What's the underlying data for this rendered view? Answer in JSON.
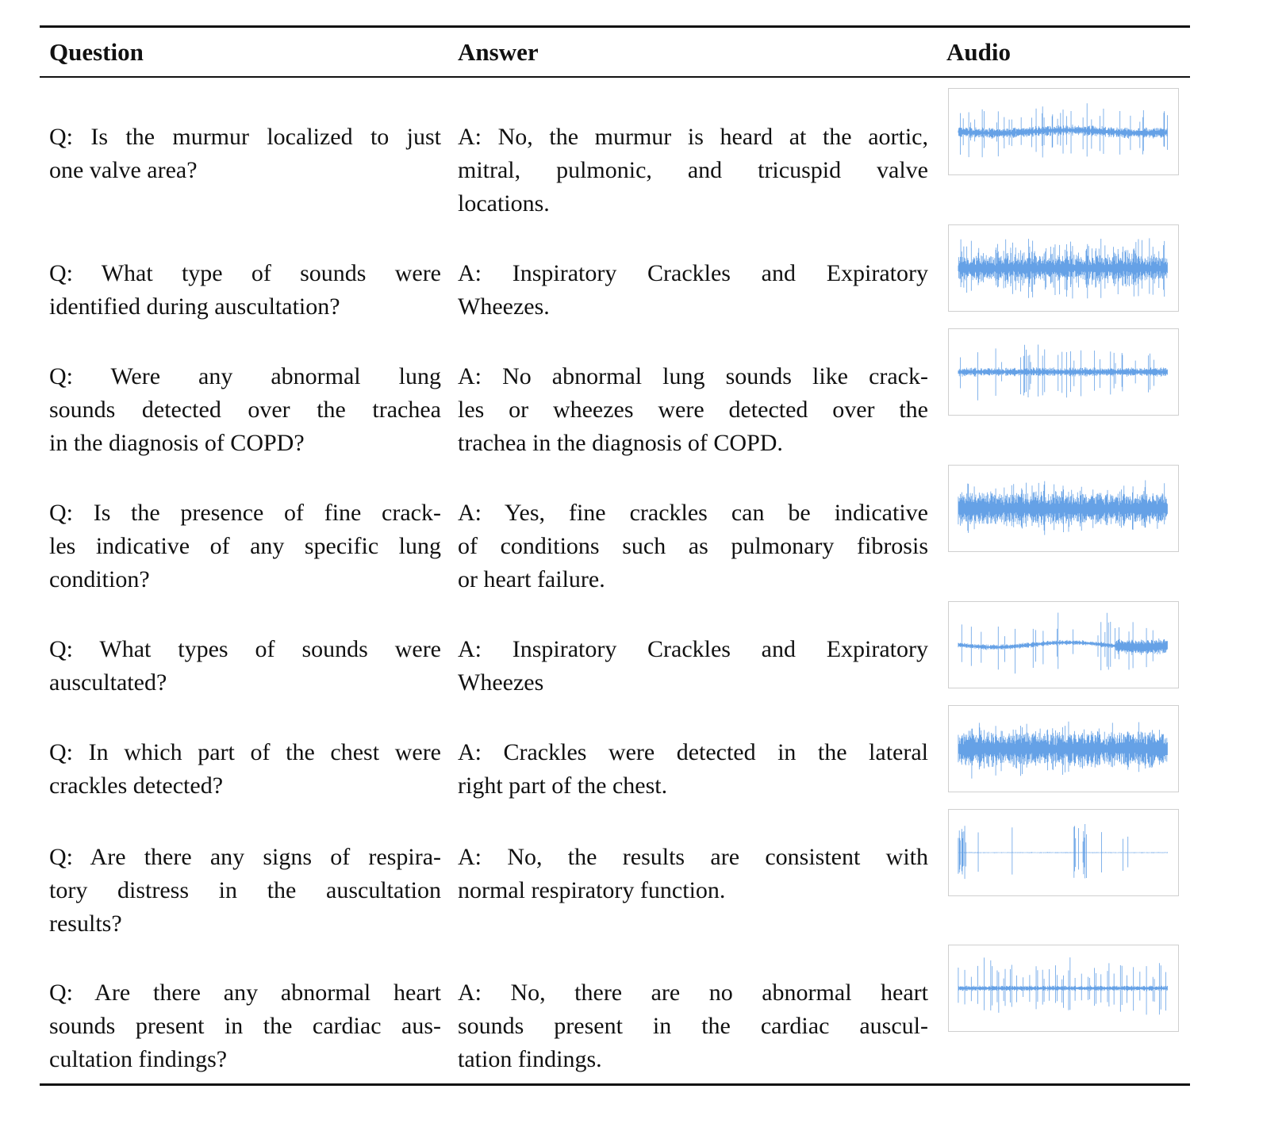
{
  "table": {
    "headers": {
      "question": "Question",
      "answer": "Answer",
      "audio": "Audio"
    },
    "waveform_color": "#4a90e2",
    "rows": [
      {
        "question": [
          "Q: Is the murmur localized to just",
          "one valve area?"
        ],
        "answer": [
          "A: No, the murmur is heard at the aortic,",
          "mitral, pulmonic, and tricuspid valve",
          "locations."
        ],
        "audio": "waveform-heart-murmur"
      },
      {
        "question": [
          "Q: What type of sounds were",
          "identified during auscultation?"
        ],
        "answer": [
          "A: Inspiratory Crackles and Expiratory",
          "Wheezes."
        ],
        "audio": "waveform-dense-crackles"
      },
      {
        "question": [
          "Q: Were any abnormal lung",
          "sounds detected over the trachea",
          "in the diagnosis of COPD?"
        ],
        "answer": [
          "A: No abnormal lung sounds like crack-",
          "les or wheezes were detected over the",
          "trachea in the diagnosis of COPD."
        ],
        "audio": "waveform-tracheal"
      },
      {
        "question": [
          "Q: Is the presence of fine crack-",
          "les indicative of any specific lung",
          "condition?"
        ],
        "answer": [
          "A: Yes, fine crackles can be indicative",
          "of conditions such as pulmonary fibrosis",
          "or heart failure."
        ],
        "audio": "waveform-fine-crackles"
      },
      {
        "question": [
          "Q: What types of sounds were",
          "auscultated?"
        ],
        "answer": [
          "A: Inspiratory Crackles and Expiratory",
          "Wheezes"
        ],
        "audio": "waveform-sparse-spikes"
      },
      {
        "question": [
          "Q: In which part of the chest were",
          "crackles detected?"
        ],
        "answer": [
          "A: Crackles were detected in the lateral",
          "right part of the chest."
        ],
        "audio": "waveform-noisy"
      },
      {
        "question": [
          "Q: Are there any signs of respira-",
          "tory distress in the auscultation",
          "results?"
        ],
        "answer": [
          "A: No, the results are consistent with",
          "normal respiratory function."
        ],
        "audio": "waveform-quiet"
      },
      {
        "question": [
          "Q: Are there any abnormal heart",
          "sounds present in the cardiac aus-",
          "cultation findings?"
        ],
        "answer": [
          "A: No, there are no abnormal heart",
          "sounds present in the cardiac auscul-",
          "tation findings."
        ],
        "audio": "waveform-heartbeat"
      }
    ]
  }
}
